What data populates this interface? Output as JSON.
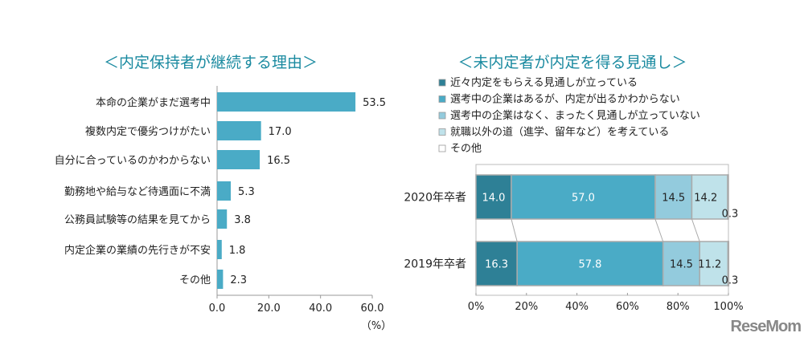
{
  "chart_data": [
    {
      "type": "bar",
      "orientation": "horizontal",
      "title": "＜内定保持者が継続する理由＞",
      "categories": [
        "本命の企業がまだ選考中",
        "複数内定で優劣つけがたい",
        "自分に合っているのかわからない",
        "勤務地や給与など待遇面に不満",
        "公務員試験等の結果を見てから",
        "内定企業の業績の先行きが不安",
        "その他"
      ],
      "values": [
        53.5,
        17.0,
        16.5,
        5.3,
        3.8,
        1.8,
        2.3
      ],
      "value_labels": [
        "53.5",
        "17.0",
        "16.5",
        "5.3",
        "3.8",
        "1.8",
        "2.3"
      ],
      "xlim": [
        0,
        60
      ],
      "xticks": [
        "0.0",
        "20.0",
        "40.0",
        "60.0"
      ],
      "xlabel": "（%）",
      "grid": false,
      "color": "#4aabc6"
    },
    {
      "type": "bar",
      "orientation": "horizontal-stacked-100",
      "title": "＜未内定者が内定を得る見通し＞",
      "categories": [
        "2020年卒者",
        "2019年卒者"
      ],
      "series": [
        {
          "name": "近々内定をもらえる見通しが立っている",
          "values": [
            14.0,
            16.3
          ],
          "labels": [
            "14.0",
            "16.3"
          ],
          "color": "#2e8096"
        },
        {
          "name": "選考中の企業はあるが、内定が出るかわからない",
          "values": [
            57.0,
            57.8
          ],
          "labels": [
            "57.0",
            "57.8"
          ],
          "color": "#4aabc6"
        },
        {
          "name": "選考中の企業はなく、まったく見通しが立っていない",
          "values": [
            14.5,
            14.5
          ],
          "labels": [
            "14.5",
            "14.5"
          ],
          "color": "#93cbdd"
        },
        {
          "name": "就職以外の道（進学、留年など）を考えている",
          "values": [
            14.2,
            11.2
          ],
          "labels": [
            "14.2",
            "11.2"
          ],
          "color": "#bfe2ea"
        },
        {
          "name": "その他",
          "values": [
            0.3,
            0.3
          ],
          "labels": [
            "0.3",
            "0.3"
          ],
          "color": "#ffffff"
        }
      ],
      "xlim": [
        0,
        100
      ],
      "xticks": [
        "0%",
        "20%",
        "40%",
        "60%",
        "80%",
        "100%"
      ],
      "legend": "top",
      "grid": false
    }
  ],
  "watermark": "ReseMom"
}
